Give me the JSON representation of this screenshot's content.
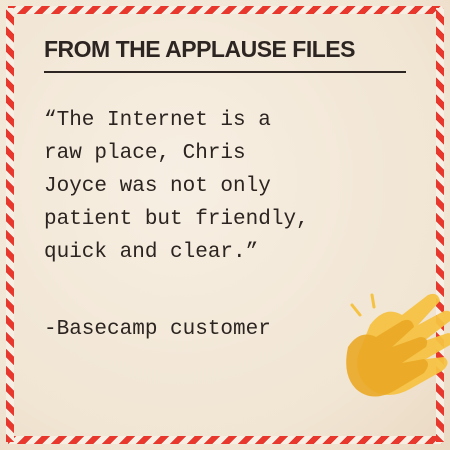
{
  "header": {
    "title": "FROM THE APPLAUSE FILES"
  },
  "quote": {
    "text": "“The Internet is a\nraw place, Chris\nJoyce was not only\npatient but friendly,\nquick and clear.”",
    "attribution": "-Basecamp customer"
  },
  "decor": {
    "icon": "clapping-hands-icon",
    "accent_color": "#e8372c",
    "icon_color": "#f5c242"
  }
}
